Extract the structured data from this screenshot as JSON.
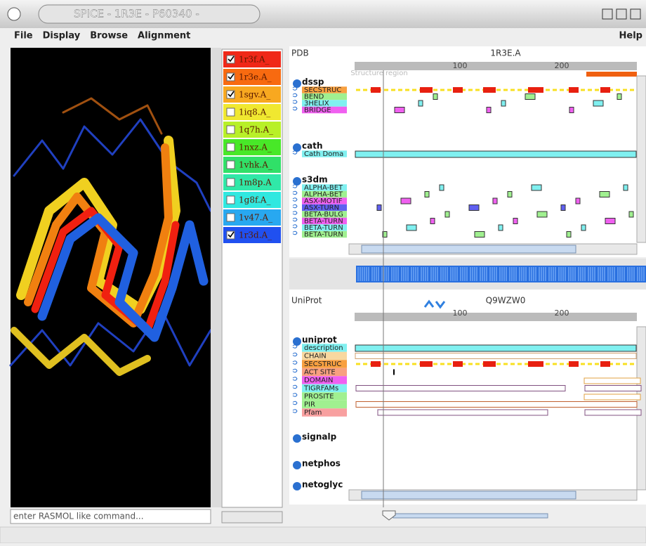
{
  "window": {
    "title": "SPICE - 1R3E - P60340 -"
  },
  "menu": {
    "left": [
      "File",
      "Display",
      "Browse",
      "Alignment"
    ],
    "right": "Help"
  },
  "structure_view": {
    "command_placeholder": "enter RASMOL like command..."
  },
  "structures": [
    {
      "label": "1r3f.A_",
      "checked": true,
      "color": "#f02818"
    },
    {
      "label": "1r3e.A_",
      "checked": true,
      "color": "#f86a10"
    },
    {
      "label": "1sgv.A_",
      "checked": true,
      "color": "#f8a820"
    },
    {
      "label": "1iq8.A_",
      "checked": false,
      "color": "#f0e830"
    },
    {
      "label": "1q7h.A_",
      "checked": false,
      "color": "#b8f028"
    },
    {
      "label": "1nxz.A_",
      "checked": false,
      "color": "#48e828"
    },
    {
      "label": "1vhk.A_",
      "checked": false,
      "color": "#30e068"
    },
    {
      "label": "1m8p.A",
      "checked": false,
      "color": "#30e8a8"
    },
    {
      "label": "1g8f.A_",
      "checked": false,
      "color": "#30e8e0"
    },
    {
      "label": "1v47.A_",
      "checked": false,
      "color": "#28a8f0"
    },
    {
      "label": "1r3d.A_",
      "checked": true,
      "color": "#2050f0"
    }
  ],
  "pdb_panel": {
    "source": "PDB",
    "accession": "1R3E.A",
    "ruler_labels": [
      "100",
      "200"
    ],
    "region_label": "Structure region",
    "groups": [
      {
        "name": "dssp",
        "tracks": [
          {
            "label": "SECSTRUC",
            "color": "#f8a040"
          },
          {
            "label": "BEND",
            "color": "#a0f090"
          },
          {
            "label": "3HELIX",
            "color": "#80f0f0"
          },
          {
            "label": "BRIDGE",
            "color": "#f060f0"
          }
        ]
      },
      {
        "name": "cath",
        "tracks": [
          {
            "label": "Cath Doma",
            "color": "#80f0f0"
          }
        ]
      },
      {
        "name": "s3dm",
        "tracks": [
          {
            "label": "ALPHA-BET",
            "color": "#80f0f0"
          },
          {
            "label": "ALPHA-BET",
            "color": "#a0f090"
          },
          {
            "label": "ASX-MOTIF",
            "color": "#f060f0"
          },
          {
            "label": "ASX-TURN",
            "color": "#6060f0"
          },
          {
            "label": "BETA-BULG",
            "color": "#a0f090"
          },
          {
            "label": "BETA-TURN",
            "color": "#f060f0"
          },
          {
            "label": "BETA-TURN",
            "color": "#80f0f0"
          },
          {
            "label": "BETA-TURN",
            "color": "#a0f090"
          }
        ]
      }
    ]
  },
  "uniprot_panel": {
    "source": "UniProt",
    "accession": "Q9WZW0",
    "ruler_labels": [
      "100",
      "200"
    ],
    "groups": [
      {
        "name": "uniprot",
        "tracks": [
          {
            "label": "description",
            "color": "#80f0f0"
          },
          {
            "label": "CHAIN",
            "color": "#f8d8a0"
          },
          {
            "label": "SECSTRUC",
            "color": "#f8a040"
          },
          {
            "label": "ACT SITE",
            "color": "#f8a080"
          },
          {
            "label": "DOMAIN",
            "color": "#f060f0"
          },
          {
            "label": "TIGRFAMs",
            "color": "#80f0f0"
          },
          {
            "label": "PROSITE",
            "color": "#a0f090"
          },
          {
            "label": "PIR",
            "color": "#a0f090"
          },
          {
            "label": "Pfam",
            "color": "#f8a0a0"
          }
        ]
      },
      {
        "name": "signalp",
        "tracks": []
      },
      {
        "name": "netphos",
        "tracks": []
      },
      {
        "name": "netoglyc",
        "tracks": []
      }
    ]
  }
}
